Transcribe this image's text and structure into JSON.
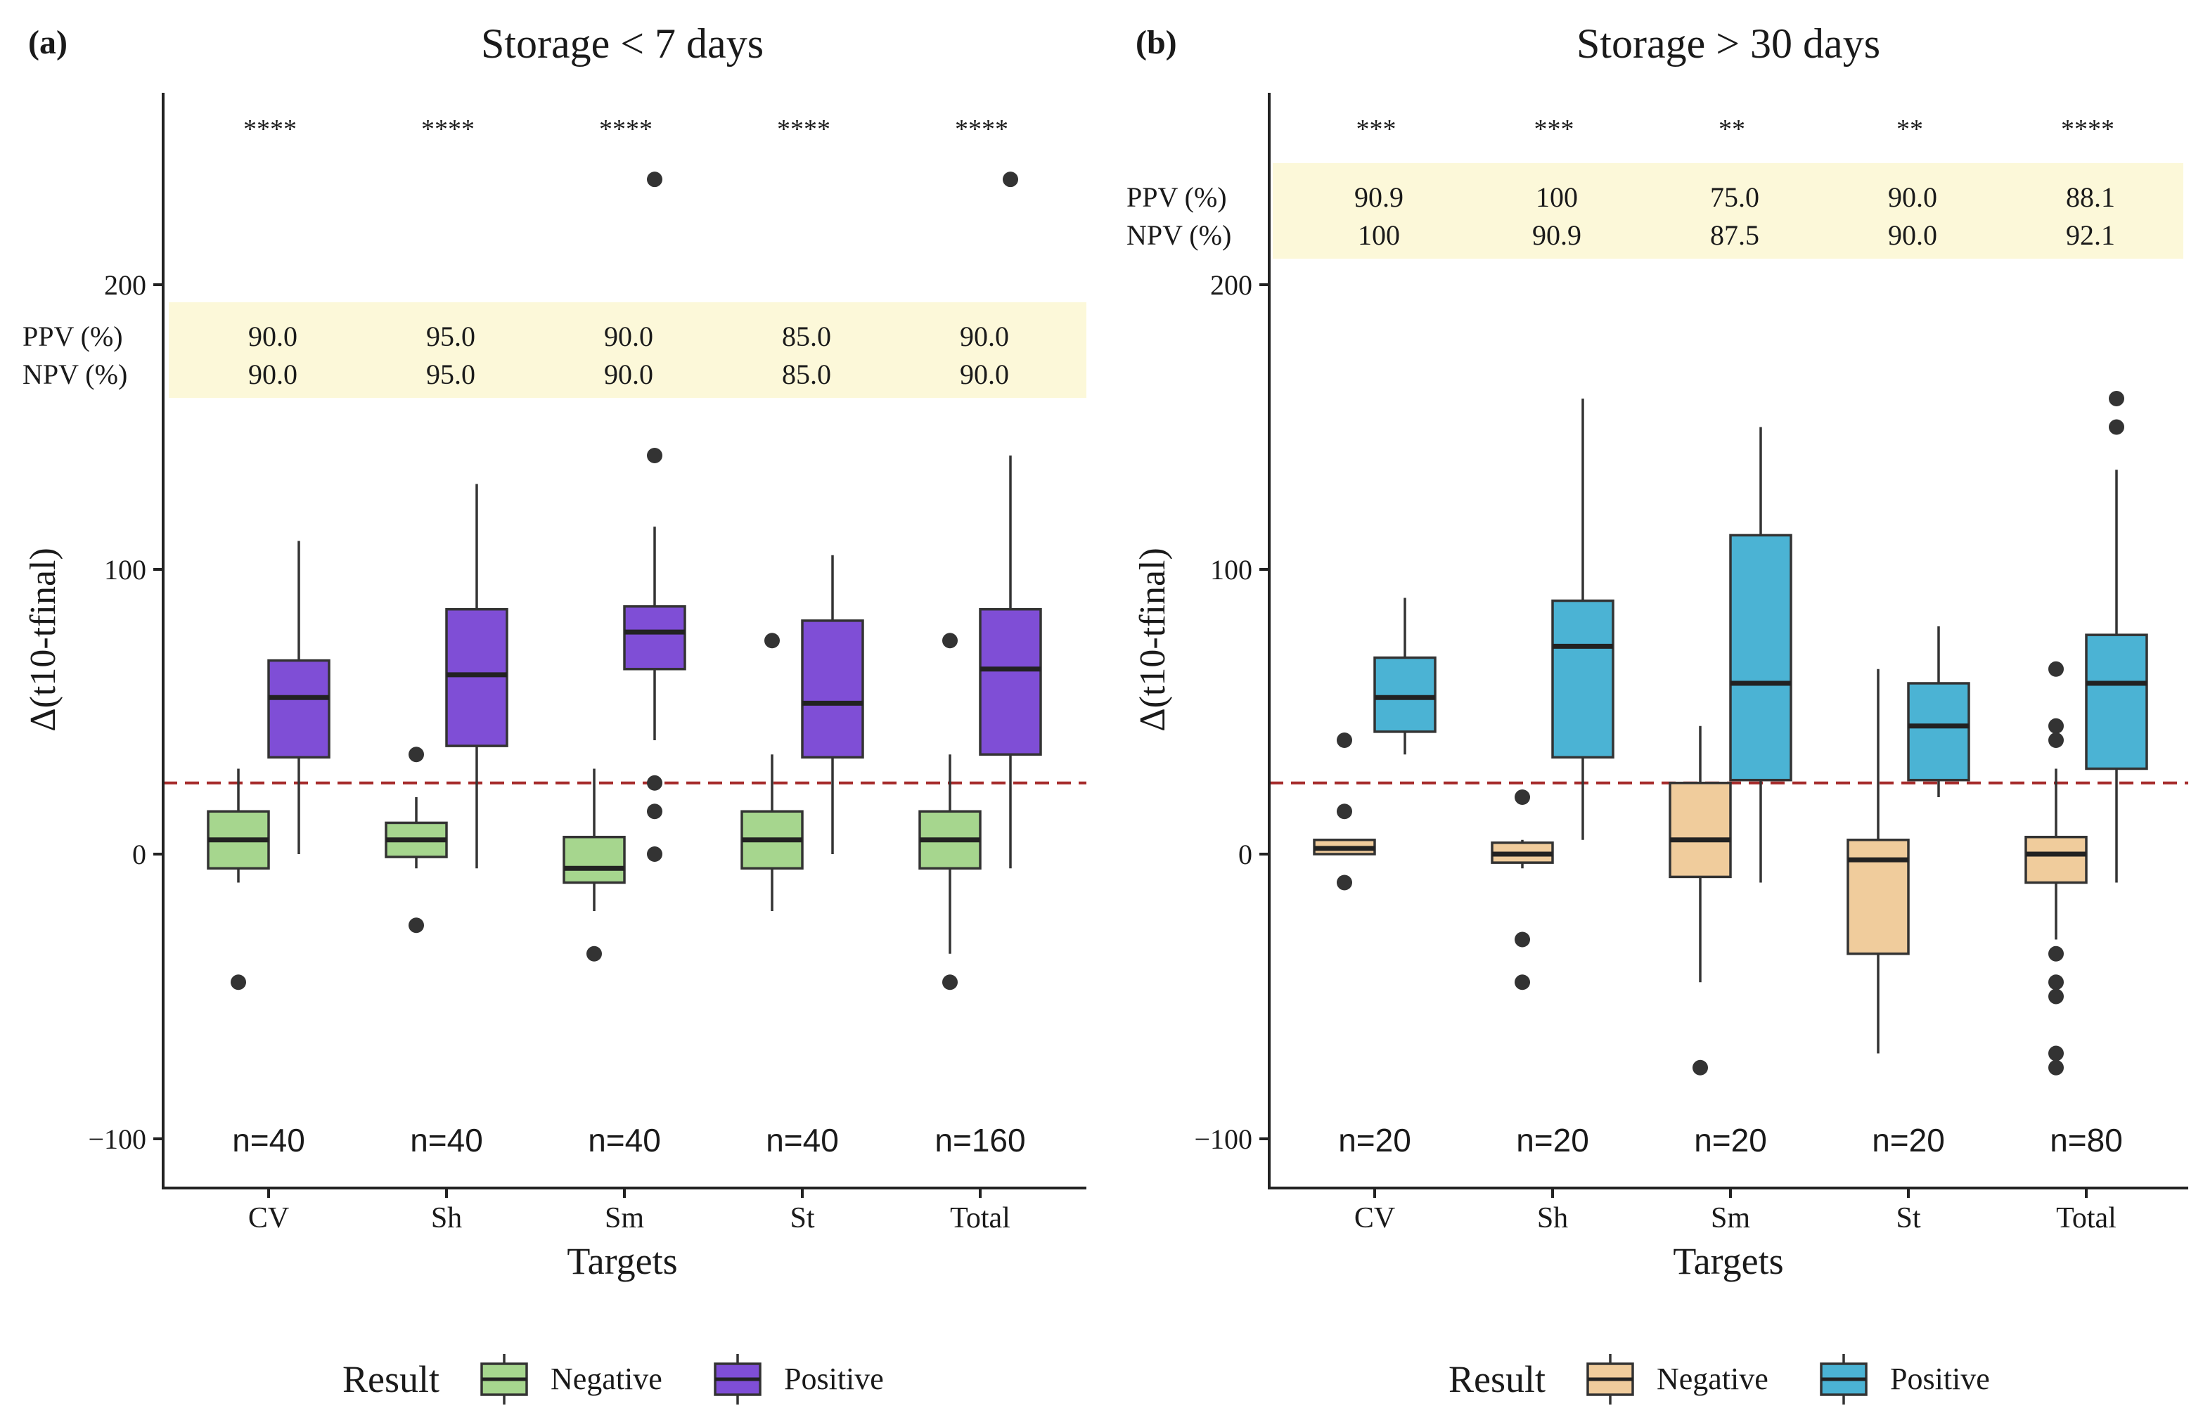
{
  "chart_data": [
    {
      "panel_label": "(a)",
      "type": "box",
      "title": "Storage < 7 days",
      "xlabel": "Targets",
      "ylabel": "Δ(t10-tfinal)",
      "ylim": [
        -115,
        268
      ],
      "yticks": [
        -100,
        0,
        100,
        200
      ],
      "threshold": 25,
      "categories": [
        "CV",
        "Sh",
        "Sm",
        "St",
        "Total"
      ],
      "significance": [
        "****",
        "****",
        "****",
        "****",
        "****"
      ],
      "ppv_label": "PPV (%)",
      "npv_label": "NPV (%)",
      "ppv": [
        "90.0",
        "95.0",
        "90.0",
        "85.0",
        "90.0"
      ],
      "npv": [
        "90.0",
        "95.0",
        "90.0",
        "85.0",
        "90.0"
      ],
      "counts": [
        "n=40",
        "n=40",
        "n=40",
        "n=40",
        "n=160"
      ],
      "legend_title": "Result",
      "series": [
        {
          "name": "Negative",
          "color": "#a6d68e",
          "boxes": [
            {
              "whisker_low": -10,
              "q1": -5,
              "median": 5,
              "q3": 15,
              "whisker_high": 30,
              "outliers": [
                -45
              ]
            },
            {
              "whisker_low": -5,
              "q1": -1,
              "median": 5,
              "q3": 11,
              "whisker_high": 20,
              "outliers": [
                35,
                -25
              ]
            },
            {
              "whisker_low": -20,
              "q1": -10,
              "median": -5,
              "q3": 6,
              "whisker_high": 30,
              "outliers": [
                -35
              ]
            },
            {
              "whisker_low": -20,
              "q1": -5,
              "median": 5,
              "q3": 15,
              "whisker_high": 35,
              "outliers": [
                75
              ]
            },
            {
              "whisker_low": -35,
              "q1": -5,
              "median": 5,
              "q3": 15,
              "whisker_high": 35,
              "outliers": [
                -45,
                75
              ]
            }
          ]
        },
        {
          "name": "Positive",
          "color": "#7f4ed6",
          "boxes": [
            {
              "whisker_low": 0,
              "q1": 34,
              "median": 55,
              "q3": 68,
              "whisker_high": 110,
              "outliers": []
            },
            {
              "whisker_low": -5,
              "q1": 38,
              "median": 63,
              "q3": 86,
              "whisker_high": 130,
              "outliers": []
            },
            {
              "whisker_low": 40,
              "q1": 65,
              "median": 78,
              "q3": 87,
              "whisker_high": 115,
              "outliers": [
                237,
                140,
                25,
                15,
                0
              ]
            },
            {
              "whisker_low": 0,
              "q1": 34,
              "median": 53,
              "q3": 82,
              "whisker_high": 105,
              "outliers": []
            },
            {
              "whisker_low": -5,
              "q1": 35,
              "median": 65,
              "q3": 86,
              "whisker_high": 140,
              "outliers": [
                237
              ]
            }
          ]
        }
      ]
    },
    {
      "panel_label": "(b)",
      "type": "box",
      "title": "Storage > 30 days",
      "xlabel": "Targets",
      "ylabel": "Δ(t10-tfinal)",
      "ylim": [
        -115,
        268
      ],
      "yticks": [
        -100,
        0,
        100,
        200
      ],
      "threshold": 25,
      "categories": [
        "CV",
        "Sh",
        "Sm",
        "St",
        "Total"
      ],
      "significance": [
        "***",
        "***",
        "**",
        "**",
        "****"
      ],
      "ppv_label": "PPV (%)",
      "npv_label": "NPV (%)",
      "ppv": [
        "90.9",
        "100",
        "75.0",
        "90.0",
        "88.1"
      ],
      "npv": [
        "100",
        "90.9",
        "87.5",
        "90.0",
        "92.1"
      ],
      "counts": [
        "n=20",
        "n=20",
        "n=20",
        "n=20",
        "n=80"
      ],
      "legend_title": "Result",
      "series": [
        {
          "name": "Negative",
          "color": "#f0cc9c",
          "boxes": [
            {
              "whisker_low": 0,
              "q1": 0,
              "median": 2,
              "q3": 5,
              "whisker_high": 5,
              "outliers": [
                40,
                15,
                -10
              ]
            },
            {
              "whisker_low": -5,
              "q1": -3,
              "median": 0,
              "q3": 4,
              "whisker_high": 5,
              "outliers": [
                20,
                -30,
                -45
              ]
            },
            {
              "whisker_low": -45,
              "q1": -8,
              "median": 5,
              "q3": 25,
              "whisker_high": 45,
              "outliers": [
                -75
              ]
            },
            {
              "whisker_low": -70,
              "q1": -35,
              "median": -2,
              "q3": 5,
              "whisker_high": 65,
              "outliers": []
            },
            {
              "whisker_low": -30,
              "q1": -10,
              "median": 0,
              "q3": 6,
              "whisker_high": 30,
              "outliers": [
                65,
                45,
                40,
                -35,
                -45,
                -50,
                -70,
                -75
              ]
            }
          ]
        },
        {
          "name": "Positive",
          "color": "#4bb3d4",
          "boxes": [
            {
              "whisker_low": 35,
              "q1": 43,
              "median": 55,
              "q3": 69,
              "whisker_high": 90,
              "outliers": []
            },
            {
              "whisker_low": 5,
              "q1": 34,
              "median": 73,
              "q3": 89,
              "whisker_high": 160,
              "outliers": []
            },
            {
              "whisker_low": -10,
              "q1": 26,
              "median": 60,
              "q3": 112,
              "whisker_high": 150,
              "outliers": []
            },
            {
              "whisker_low": 20,
              "q1": 26,
              "median": 45,
              "q3": 60,
              "whisker_high": 80,
              "outliers": []
            },
            {
              "whisker_low": -10,
              "q1": 30,
              "median": 60,
              "q3": 77,
              "whisker_high": 135,
              "outliers": [
                160,
                150
              ]
            }
          ]
        }
      ]
    }
  ]
}
